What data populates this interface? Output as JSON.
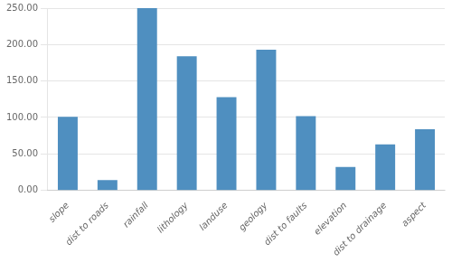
{
  "chart_data": {
    "type": "bar",
    "categories": [
      "slope",
      "dist to roads",
      "rainfall",
      "lithology",
      "landuse",
      "geology",
      "dist to faults",
      "elevation",
      "dist to drainage",
      "aspect"
    ],
    "values": [
      101,
      14,
      250,
      184,
      128,
      193,
      102,
      32,
      63,
      84
    ],
    "color": "#4f8fc0",
    "ylim": [
      0,
      250
    ],
    "yticks": [
      {
        "value": 0,
        "label": "0.00"
      },
      {
        "value": 50,
        "label": "50.00"
      },
      {
        "value": 100,
        "label": "100.00"
      },
      {
        "value": 150,
        "label": "150.00"
      },
      {
        "value": 200,
        "label": "200.00"
      },
      {
        "value": 250,
        "label": "250.00"
      }
    ],
    "grid": true
  }
}
